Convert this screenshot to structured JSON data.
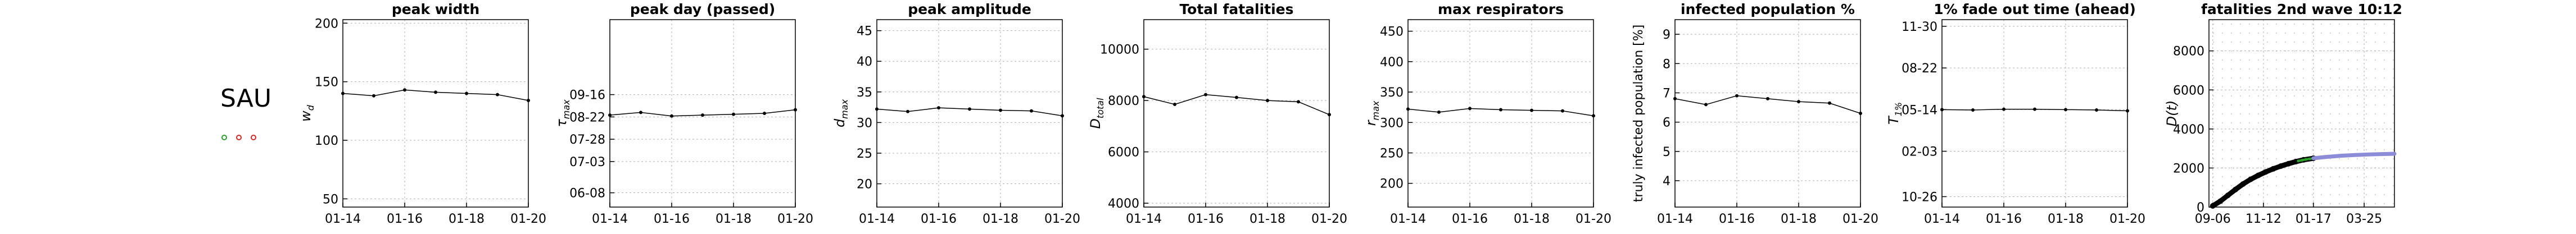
{
  "country": {
    "code": "SAU",
    "markers": [
      {
        "name": "green-marker",
        "color": "#2ca02c"
      },
      {
        "name": "red-marker-1",
        "color": "#d62728"
      },
      {
        "name": "red-marker-2",
        "color": "#d62728"
      }
    ]
  },
  "chart_data": [
    {
      "type": "line",
      "title": "peak width",
      "ylabel": "w_d",
      "x": [
        "01-14",
        "01-15",
        "01-16",
        "01-17",
        "01-18",
        "01-19",
        "01-20"
      ],
      "y": [
        140,
        138,
        143,
        141,
        140,
        139,
        134
      ],
      "xticks": [
        "01-14",
        "01-16",
        "01-18",
        "01-20"
      ],
      "ylim": [
        43,
        203
      ],
      "yticks": [
        {
          "v": 50,
          "label": "50"
        },
        {
          "v": 100,
          "label": "100"
        },
        {
          "v": 150,
          "label": "150"
        },
        {
          "v": 200,
          "label": "200"
        }
      ],
      "grid": true
    },
    {
      "type": "line",
      "title": "peak day (passed)",
      "ylabel": "τ_max",
      "x": [
        "01-14",
        "01-15",
        "01-16",
        "01-17",
        "01-18",
        "01-19",
        "01-20"
      ],
      "y": [
        -82,
        -79,
        -83,
        -82,
        -81,
        -80,
        -76
      ],
      "xticks": [
        "01-14",
        "01-16",
        "01-18",
        "01-20"
      ],
      "ylim": [
        -185,
        25
      ],
      "yticks": [
        {
          "v": -169,
          "label": "06-08"
        },
        {
          "v": -134,
          "label": "07-03"
        },
        {
          "v": -109,
          "label": "07-28"
        },
        {
          "v": -84,
          "label": "08-22"
        },
        {
          "v": -59,
          "label": "09-16"
        }
      ],
      "grid": true
    },
    {
      "type": "line",
      "title": "peak amplitude",
      "ylabel": "d_max",
      "x": [
        "01-14",
        "01-15",
        "01-16",
        "01-17",
        "01-18",
        "01-19",
        "01-20"
      ],
      "y": [
        32.2,
        31.8,
        32.4,
        32.2,
        32.0,
        31.9,
        31.1
      ],
      "xticks": [
        "01-14",
        "01-16",
        "01-18",
        "01-20"
      ],
      "ylim": [
        16.2,
        46.8
      ],
      "yticks": [
        {
          "v": 20,
          "label": "20"
        },
        {
          "v": 25,
          "label": "25"
        },
        {
          "v": 30,
          "label": "30"
        },
        {
          "v": 35,
          "label": "35"
        },
        {
          "v": 40,
          "label": "40"
        },
        {
          "v": 45,
          "label": "45"
        }
      ],
      "grid": true
    },
    {
      "type": "line",
      "title": "Total fatalities",
      "ylabel": "D_total",
      "x": [
        "01-14",
        "01-15",
        "01-16",
        "01-17",
        "01-18",
        "01-19",
        "01-20"
      ],
      "y": [
        8150,
        7850,
        8230,
        8120,
        8000,
        7950,
        7450
      ],
      "xticks": [
        "01-14",
        "01-16",
        "01-18",
        "01-20"
      ],
      "ylim": [
        3850,
        11150
      ],
      "yticks": [
        {
          "v": 4000,
          "label": "4000"
        },
        {
          "v": 6000,
          "label": "6000"
        },
        {
          "v": 8000,
          "label": "8000"
        },
        {
          "v": 10000,
          "label": "10000"
        }
      ],
      "grid": true
    },
    {
      "type": "line",
      "title": "max respirators",
      "ylabel": "r_max",
      "x": [
        "01-14",
        "01-15",
        "01-16",
        "01-17",
        "01-18",
        "01-19",
        "01-20"
      ],
      "y": [
        322,
        317,
        323,
        321,
        320,
        319,
        311
      ],
      "xticks": [
        "01-14",
        "01-16",
        "01-18",
        "01-20"
      ],
      "ylim": [
        161,
        469
      ],
      "yticks": [
        {
          "v": 200,
          "label": "200"
        },
        {
          "v": 250,
          "label": "250"
        },
        {
          "v": 300,
          "label": "300"
        },
        {
          "v": 350,
          "label": "350"
        },
        {
          "v": 400,
          "label": "400"
        },
        {
          "v": 450,
          "label": "450"
        }
      ],
      "grid": true
    },
    {
      "type": "line",
      "title": "infected population %",
      "ylabel": "truly infected population [%]",
      "x": [
        "01-14",
        "01-15",
        "01-16",
        "01-17",
        "01-18",
        "01-19",
        "01-20"
      ],
      "y": [
        6.8,
        6.6,
        6.9,
        6.8,
        6.7,
        6.65,
        6.3
      ],
      "xticks": [
        "01-14",
        "01-16",
        "01-18",
        "01-20"
      ],
      "ylim": [
        3.1,
        9.5
      ],
      "yticks": [
        {
          "v": 4,
          "label": "4"
        },
        {
          "v": 5,
          "label": "5"
        },
        {
          "v": 6,
          "label": "6"
        },
        {
          "v": 7,
          "label": "7"
        },
        {
          "v": 8,
          "label": "8"
        },
        {
          "v": 9,
          "label": "9"
        }
      ],
      "grid": true
    },
    {
      "type": "line",
      "title": "1% fade out time (ahead)",
      "ylabel": "T_1%",
      "x": [
        "01-14",
        "01-15",
        "01-16",
        "01-17",
        "01-18",
        "01-19",
        "01-20"
      ],
      "y": [
        114,
        113,
        115,
        115,
        114,
        113,
        111
      ],
      "xticks": [
        "01-14",
        "01-16",
        "01-18",
        "01-20"
      ],
      "ylim": [
        -120,
        330
      ],
      "yticks": [
        {
          "v": -95,
          "label": "10-26"
        },
        {
          "v": 14,
          "label": "02-03"
        },
        {
          "v": 114,
          "label": "05-14"
        },
        {
          "v": 214,
          "label": "08-22"
        },
        {
          "v": 314,
          "label": "11-30"
        }
      ],
      "grid": true
    },
    {
      "type": "line",
      "title": "fatalities 2nd wave 10:12",
      "ylabel": "D(t)",
      "xticks": [
        "09-06",
        "11-12",
        "01-17",
        "03-25"
      ],
      "xlim": [
        -5,
        240
      ],
      "ylim": [
        0,
        9600
      ],
      "yticks": [
        {
          "v": 0,
          "label": "0"
        },
        {
          "v": 2000,
          "label": "2000"
        },
        {
          "v": 4000,
          "label": "4000"
        },
        {
          "v": 6000,
          "label": "6000"
        },
        {
          "v": 8000,
          "label": "8000"
        }
      ],
      "xtick_days": [
        0,
        67,
        133,
        200
      ],
      "series": [
        {
          "name": "",
          "color": "#000000",
          "x": [
            0,
            10,
            20,
            30,
            40,
            50,
            60,
            70,
            80,
            90,
            100,
            110,
            120,
            133
          ],
          "y": [
            60,
            300,
            600,
            900,
            1180,
            1420,
            1620,
            1800,
            1960,
            2100,
            2220,
            2330,
            2420,
            2500
          ]
        },
        {
          "name": "",
          "color": "#2ca02c",
          "x": [
            113,
            118,
            123,
            128,
            133
          ],
          "y": [
            2360,
            2400,
            2440,
            2470,
            2500
          ]
        },
        {
          "name": "",
          "color": "#8c8cd9",
          "x": [
            133,
            150,
            170,
            190,
            210,
            230,
            240
          ],
          "y": [
            2500,
            2570,
            2630,
            2670,
            2700,
            2720,
            2730
          ]
        }
      ],
      "grid": true,
      "background_dots": true
    }
  ]
}
